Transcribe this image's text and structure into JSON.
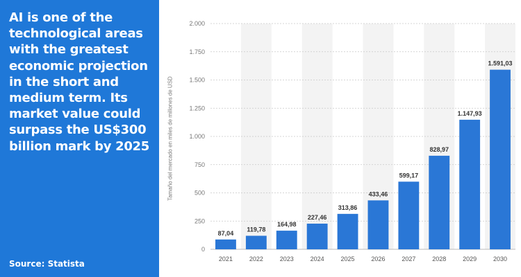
{
  "panel": {
    "headline": "AI is one of the technological areas with the greatest economic projection in the short and medium term. Its market value could surpass the US$300 billion mark by 2025",
    "source": "Source: Statista",
    "background": "#1f78d8"
  },
  "chart_data": {
    "type": "bar",
    "categories": [
      "2021",
      "2022",
      "2023",
      "2024",
      "2025",
      "2026",
      "2027",
      "2028",
      "2029",
      "2030"
    ],
    "values": [
      87.04,
      119.78,
      164.98,
      227.46,
      313.86,
      433.46,
      599.17,
      828.97,
      1147.93,
      1591.03
    ],
    "value_labels": [
      "87,04",
      "119,78",
      "164,98",
      "227,46",
      "313,86",
      "433,46",
      "599,17",
      "828,97",
      "1.147,93",
      "1.591,03"
    ],
    "yticks": [
      0,
      250,
      500,
      750,
      1000,
      1250,
      1500,
      1750,
      2000
    ],
    "ytick_labels": [
      "0",
      "250",
      "500",
      "750",
      "1.000",
      "1.250",
      "1.500",
      "1.750",
      "2.000"
    ],
    "ylim": [
      0,
      2000
    ],
    "ylabel": "Tamaño del mercado en miles de millones de USD",
    "xlabel": "",
    "grid": true,
    "bar_color": "#2a77d6"
  }
}
